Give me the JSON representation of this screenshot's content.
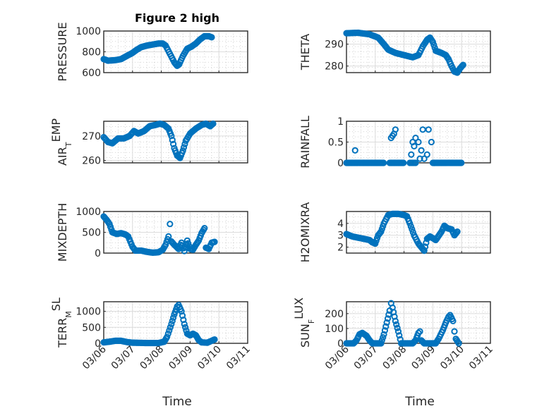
{
  "figure": {
    "title": "Figure 2 high",
    "xlabel": "Time"
  },
  "colors": {
    "series": "#0072bd",
    "axis": "#262626"
  },
  "chart_data": [
    {
      "type": "scatter",
      "name": "pressure",
      "ylabel": "PRESSURE",
      "xlim": [
        0,
        5
      ],
      "ylim": [
        600,
        1000
      ],
      "yticks": [
        600,
        800,
        1000
      ],
      "xticks": [
        0,
        1,
        2,
        3,
        4,
        5
      ],
      "xticklabels": [
        "03/06",
        "03/07",
        "03/08",
        "03/09",
        "03/10",
        "03/11"
      ],
      "show_xticklabels": false,
      "marker": "circle",
      "keyframes": [
        [
          0,
          730
        ],
        [
          0.15,
          715
        ],
        [
          0.4,
          720
        ],
        [
          0.6,
          730
        ],
        [
          0.8,
          760
        ],
        [
          1.0,
          790
        ],
        [
          1.15,
          820
        ],
        [
          1.3,
          845
        ],
        [
          1.5,
          860
        ],
        [
          1.7,
          870
        ],
        [
          1.9,
          880
        ],
        [
          2.05,
          880
        ],
        [
          2.15,
          860
        ],
        [
          2.3,
          780
        ],
        [
          2.45,
          700
        ],
        [
          2.55,
          665
        ],
        [
          2.62,
          680
        ],
        [
          2.75,
          760
        ],
        [
          2.9,
          830
        ],
        [
          3.05,
          850
        ],
        [
          3.2,
          880
        ],
        [
          3.35,
          920
        ],
        [
          3.5,
          950
        ],
        [
          3.65,
          950
        ],
        [
          3.75,
          940
        ]
      ]
    },
    {
      "type": "scatter",
      "name": "theta",
      "ylabel": "THETA",
      "xlim": [
        0,
        5
      ],
      "ylim": [
        277,
        296
      ],
      "yticks": [
        280,
        290
      ],
      "xticks": [
        0,
        1,
        2,
        3,
        4,
        5
      ],
      "xticklabels": [
        "03/06",
        "03/07",
        "03/08",
        "03/09",
        "03/10",
        "03/11"
      ],
      "show_xticklabels": false,
      "marker": "circle",
      "keyframes": [
        [
          0,
          295
        ],
        [
          0.4,
          295.2
        ],
        [
          0.8,
          294.5
        ],
        [
          1.1,
          293
        ],
        [
          1.3,
          290
        ],
        [
          1.45,
          287.5
        ],
        [
          1.7,
          286
        ],
        [
          2.0,
          285
        ],
        [
          2.3,
          284
        ],
        [
          2.5,
          285
        ],
        [
          2.65,
          289
        ],
        [
          2.8,
          292
        ],
        [
          2.9,
          293
        ],
        [
          3.0,
          291
        ],
        [
          3.1,
          287
        ],
        [
          3.3,
          286
        ],
        [
          3.45,
          285
        ],
        [
          3.55,
          283
        ],
        [
          3.65,
          280
        ],
        [
          3.75,
          277.5
        ],
        [
          3.85,
          277
        ],
        [
          3.95,
          279
        ],
        [
          4.05,
          280.5
        ]
      ]
    },
    {
      "type": "scatter",
      "name": "air_temp",
      "ylabel": "AIR_TEMP",
      "ylabel_parts": {
        "main": "AIR",
        "sub": "T",
        "rest": "EMP"
      },
      "xlim": [
        0,
        5
      ],
      "ylim": [
        259,
        276
      ],
      "yticks": [
        260,
        270
      ],
      "xticks": [
        0,
        1,
        2,
        3,
        4,
        5
      ],
      "xticklabels": [
        "03/06",
        "03/07",
        "03/08",
        "03/09",
        "03/10",
        "03/11"
      ],
      "show_xticklabels": false,
      "marker": "circle",
      "keyframes": [
        [
          0,
          269.5
        ],
        [
          0.15,
          267.5
        ],
        [
          0.3,
          267
        ],
        [
          0.5,
          269
        ],
        [
          0.7,
          269
        ],
        [
          0.9,
          270
        ],
        [
          1.05,
          272
        ],
        [
          1.2,
          271
        ],
        [
          1.4,
          272
        ],
        [
          1.6,
          274
        ],
        [
          1.8,
          274.5
        ],
        [
          1.95,
          275
        ],
        [
          2.1,
          274.5
        ],
        [
          2.25,
          273
        ],
        [
          2.35,
          270
        ],
        [
          2.45,
          265
        ],
        [
          2.55,
          262
        ],
        [
          2.65,
          261
        ],
        [
          2.75,
          264
        ],
        [
          2.85,
          268
        ],
        [
          3.0,
          271
        ],
        [
          3.2,
          273
        ],
        [
          3.4,
          274.5
        ],
        [
          3.55,
          275
        ],
        [
          3.7,
          274
        ],
        [
          3.8,
          275
        ]
      ]
    },
    {
      "type": "scatter",
      "name": "rainfall",
      "ylabel": "RAINFALL",
      "xlim": [
        0,
        5
      ],
      "ylim": [
        0,
        1
      ],
      "yticks": [
        0,
        0.5,
        1
      ],
      "xticks": [
        0,
        1,
        2,
        3,
        4,
        5
      ],
      "xticklabels": [
        "03/06",
        "03/07",
        "03/08",
        "03/09",
        "03/10",
        "03/11"
      ],
      "show_xticklabels": false,
      "marker": "circle",
      "baseline_ranges": [
        [
          0,
          1.3,
          0.03
        ],
        [
          1.5,
          2.0,
          0.03
        ],
        [
          2.2,
          2.4,
          0.05
        ],
        [
          3.0,
          4.0,
          0.03
        ]
      ],
      "points": [
        [
          0.3,
          0.3
        ],
        [
          1.55,
          0.6
        ],
        [
          1.6,
          0.65
        ],
        [
          1.65,
          0.7
        ],
        [
          1.7,
          0.8
        ],
        [
          2.25,
          0.2
        ],
        [
          2.3,
          0.5
        ],
        [
          2.35,
          0.4
        ],
        [
          2.4,
          0.6
        ],
        [
          2.5,
          0.5
        ],
        [
          2.55,
          0.1
        ],
        [
          2.6,
          0.3
        ],
        [
          2.65,
          0.8
        ],
        [
          2.7,
          0.1
        ],
        [
          2.8,
          0.2
        ],
        [
          2.85,
          0.8
        ],
        [
          2.95,
          0.5
        ],
        [
          3.05,
          0.0
        ]
      ]
    },
    {
      "type": "scatter",
      "name": "mixdepth",
      "ylabel": "MIXDEPTH",
      "xlim": [
        0,
        5
      ],
      "ylim": [
        0,
        1000
      ],
      "yticks": [
        0,
        500,
        1000
      ],
      "xticks": [
        0,
        1,
        2,
        3,
        4,
        5
      ],
      "xticklabels": [
        "03/06",
        "03/07",
        "03/08",
        "03/09",
        "03/10",
        "03/11"
      ],
      "show_xticklabels": false,
      "marker": "circle",
      "keyframes": [
        [
          0,
          880
        ],
        [
          0.1,
          800
        ],
        [
          0.2,
          700
        ],
        [
          0.3,
          500
        ],
        [
          0.45,
          460
        ],
        [
          0.6,
          480
        ],
        [
          0.75,
          450
        ],
        [
          0.85,
          400
        ],
        [
          1.0,
          150
        ],
        [
          1.1,
          60
        ],
        [
          1.3,
          60
        ],
        [
          1.5,
          30
        ],
        [
          1.7,
          10
        ],
        [
          1.9,
          20
        ],
        [
          2.05,
          80
        ],
        [
          2.15,
          200
        ],
        [
          2.25,
          400
        ],
        [
          2.3,
          700
        ],
        [
          2.35,
          280
        ],
        [
          2.45,
          200
        ],
        [
          2.6,
          100
        ],
        [
          2.7,
          250
        ],
        [
          2.8,
          50
        ],
        [
          2.9,
          300
        ],
        [
          3.0,
          100
        ],
        [
          3.1,
          80
        ],
        [
          3.2,
          200
        ],
        [
          3.3,
          300
        ],
        [
          3.4,
          480
        ],
        [
          3.5,
          600
        ],
        [
          3.55,
          130
        ],
        [
          3.65,
          100
        ],
        [
          3.75,
          250
        ],
        [
          3.85,
          270
        ]
      ]
    },
    {
      "type": "scatter",
      "name": "h2omixra",
      "ylabel": "H2OMIXRA",
      "xlim": [
        0,
        5
      ],
      "ylim": [
        1.5,
        5.0
      ],
      "yticks": [
        2,
        3,
        4
      ],
      "xticks": [
        0,
        1,
        2,
        3,
        4,
        5
      ],
      "xticklabels": [
        "03/06",
        "03/07",
        "03/08",
        "03/09",
        "03/10",
        "03/11"
      ],
      "show_xticklabels": false,
      "marker": "circle",
      "keyframes": [
        [
          0,
          3.1
        ],
        [
          0.2,
          2.9
        ],
        [
          0.4,
          2.8
        ],
        [
          0.6,
          2.7
        ],
        [
          0.8,
          2.6
        ],
        [
          0.9,
          2.4
        ],
        [
          1.0,
          2.3
        ],
        [
          1.1,
          3.0
        ],
        [
          1.2,
          3.3
        ],
        [
          1.3,
          4.0
        ],
        [
          1.45,
          4.7
        ],
        [
          1.6,
          4.8
        ],
        [
          1.8,
          4.8
        ],
        [
          2.0,
          4.7
        ],
        [
          2.1,
          4.6
        ],
        [
          2.2,
          4.0
        ],
        [
          2.35,
          3.0
        ],
        [
          2.5,
          2.3
        ],
        [
          2.6,
          2.0
        ],
        [
          2.7,
          1.7
        ],
        [
          2.8,
          2.7
        ],
        [
          2.9,
          2.9
        ],
        [
          3.1,
          2.6
        ],
        [
          3.3,
          3.3
        ],
        [
          3.4,
          3.8
        ],
        [
          3.5,
          3.6
        ],
        [
          3.65,
          3.5
        ],
        [
          3.75,
          3.0
        ],
        [
          3.85,
          3.3
        ]
      ]
    },
    {
      "type": "scatter",
      "name": "terr_msl",
      "ylabel": "TERR_MSL",
      "ylabel_parts": {
        "main": "TERR",
        "sub": "M",
        "rest": "SL"
      },
      "xlim": [
        0,
        5
      ],
      "ylim": [
        0,
        1300
      ],
      "yticks": [
        0,
        500,
        1000
      ],
      "xticks": [
        0,
        1,
        2,
        3,
        4,
        5
      ],
      "xticklabels": [
        "03/06",
        "03/07",
        "03/08",
        "03/09",
        "03/10",
        "03/11"
      ],
      "show_xticklabels": true,
      "marker": "circle",
      "keyframes": [
        [
          0,
          30
        ],
        [
          0.2,
          50
        ],
        [
          0.4,
          80
        ],
        [
          0.6,
          80
        ],
        [
          0.8,
          40
        ],
        [
          1.0,
          20
        ],
        [
          1.5,
          10
        ],
        [
          1.9,
          10
        ],
        [
          2.1,
          50
        ],
        [
          2.2,
          200
        ],
        [
          2.35,
          600
        ],
        [
          2.45,
          900
        ],
        [
          2.55,
          1150
        ],
        [
          2.6,
          1200
        ],
        [
          2.7,
          1000
        ],
        [
          2.8,
          600
        ],
        [
          2.9,
          300
        ],
        [
          3.0,
          250
        ],
        [
          3.1,
          300
        ],
        [
          3.2,
          250
        ],
        [
          3.3,
          100
        ],
        [
          3.4,
          30
        ],
        [
          3.6,
          20
        ],
        [
          3.75,
          80
        ],
        [
          3.85,
          120
        ]
      ]
    },
    {
      "type": "scatter",
      "name": "sun_flux",
      "ylabel": "SUN_FLUX",
      "ylabel_parts": {
        "main": "SUN",
        "sub": "F",
        "rest": "LUX"
      },
      "xlim": [
        0,
        5
      ],
      "ylim": [
        0,
        280
      ],
      "yticks": [
        0,
        100,
        200
      ],
      "xticks": [
        0,
        1,
        2,
        3,
        4,
        5
      ],
      "xticklabels": [
        "03/06",
        "03/07",
        "03/08",
        "03/09",
        "03/10",
        "03/11"
      ],
      "show_xticklabels": true,
      "marker": "circle",
      "keyframes": [
        [
          0,
          0
        ],
        [
          0.25,
          0
        ],
        [
          0.35,
          20
        ],
        [
          0.45,
          60
        ],
        [
          0.55,
          70
        ],
        [
          0.7,
          50
        ],
        [
          0.8,
          20
        ],
        [
          0.9,
          0
        ],
        [
          1.2,
          0
        ],
        [
          1.3,
          60
        ],
        [
          1.4,
          140
        ],
        [
          1.5,
          220
        ],
        [
          1.55,
          270
        ],
        [
          1.6,
          240
        ],
        [
          1.7,
          150
        ],
        [
          1.8,
          80
        ],
        [
          1.9,
          0
        ],
        [
          2.3,
          0
        ],
        [
          2.4,
          20
        ],
        [
          2.5,
          70
        ],
        [
          2.55,
          80
        ],
        [
          2.6,
          20
        ],
        [
          2.7,
          0
        ],
        [
          3.1,
          0
        ],
        [
          3.2,
          30
        ],
        [
          3.35,
          90
        ],
        [
          3.45,
          140
        ],
        [
          3.55,
          180
        ],
        [
          3.6,
          190
        ],
        [
          3.7,
          150
        ],
        [
          3.75,
          80
        ],
        [
          3.8,
          30
        ],
        [
          3.9,
          0
        ]
      ]
    }
  ]
}
